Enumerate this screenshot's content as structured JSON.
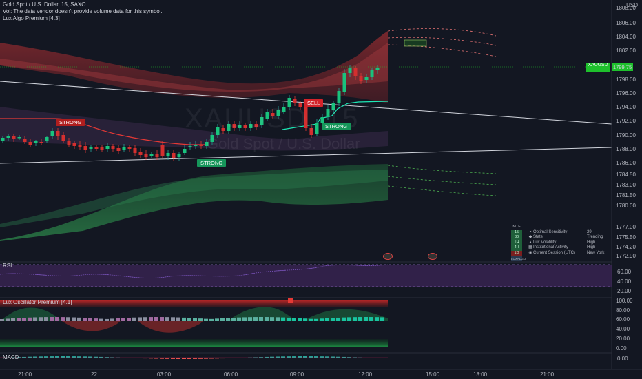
{
  "header": {
    "title": "Gold Spot / U.S. Dollar, 15, SAXO",
    "volume_note": "Vol: The data vendor doesn't provide volume data for this symbol.",
    "indicator_1": "Lux Algo Premium [4.3]"
  },
  "watermark": {
    "symbol": "XAUUSD, 15",
    "description": "Gold Spot / U.S. Dollar"
  },
  "price_axis": {
    "currency": "USD",
    "ticks": [
      "1808.00",
      "1806.00",
      "1804.00",
      "1802.00",
      "1798.00",
      "1796.00",
      "1794.00",
      "1792.00",
      "1790.00",
      "1788.00",
      "1786.00",
      "1784.50",
      "1783.00",
      "1781.50",
      "1780.00",
      "1777.00",
      "1775.50",
      "1774.20",
      "1772.90"
    ],
    "last_price_tag": "1799.75",
    "symbol_tag": "XAUUSD"
  },
  "signals": {
    "strong_red": "STRONG",
    "sell": "SELL",
    "strong_green_1": "STRONG",
    "strong_green_2": "STRONG"
  },
  "dashboard": {
    "header": "MTF",
    "rows": [
      {
        "tf": "15",
        "icon": "gauge-icon",
        "label": "Optimal Sensitivity",
        "value": "29"
      },
      {
        "tf": "30",
        "icon": "bolt-icon",
        "label": "State",
        "value": "Trending"
      },
      {
        "tf": "1H",
        "icon": "triangle-icon",
        "label": "Lux Volatility",
        "value": "High"
      },
      {
        "tf": "4H",
        "icon": "bank-icon",
        "label": "Institutional Activity",
        "value": "High"
      },
      {
        "tf": "1D",
        "icon": "globe-icon",
        "label": "Current Session (UTC)",
        "value": "New York"
      }
    ],
    "footer": "LUXALGO"
  },
  "rsi": {
    "label": "RSI",
    "ticks": [
      "60.00",
      "40.00",
      "20.00"
    ]
  },
  "oscillator": {
    "label": "Lux Oscillator Premium [4.1]",
    "ticks": [
      "100.00",
      "80.00",
      "60.00",
      "40.00",
      "20.00",
      "0.00"
    ]
  },
  "macd": {
    "label": "MACD",
    "ticks": [
      "0.00"
    ]
  },
  "time_axis": {
    "labels": [
      "21:00",
      "22",
      "03:00",
      "06:00",
      "09:00",
      "12:00",
      "15:00",
      "18:00",
      "21:00"
    ]
  },
  "colors": {
    "background": "#131722",
    "bull": "#26a69a",
    "bear": "#ef5350",
    "green_signal": "#16965a",
    "sell_red": "#d4232a",
    "price_tag": "#1ec02c"
  }
}
